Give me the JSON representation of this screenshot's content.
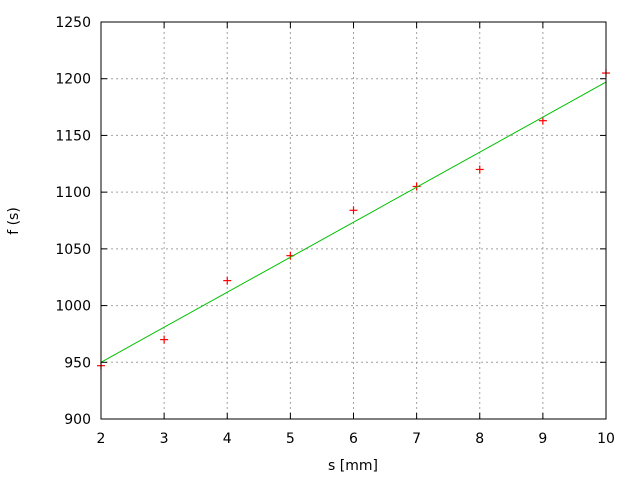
{
  "chart_data": {
    "type": "scatter",
    "title": "",
    "xlabel": "s [mm]",
    "ylabel": "f (s)",
    "xlim": [
      2,
      10
    ],
    "ylim": [
      900,
      1250
    ],
    "xticks": [
      2,
      3,
      4,
      5,
      6,
      7,
      8,
      9,
      10
    ],
    "yticks": [
      900,
      950,
      1000,
      1050,
      1100,
      1150,
      1200,
      1250
    ],
    "grid": true,
    "legend": "none",
    "series": [
      {
        "type": "scatter",
        "marker": "plus",
        "color": "#ff0000",
        "x": [
          2,
          3,
          4,
          5,
          6,
          7,
          8,
          9,
          10
        ],
        "y": [
          947,
          970,
          1022,
          1044,
          1084,
          1105,
          1120,
          1163,
          1205
        ]
      },
      {
        "type": "line",
        "color": "#00c000",
        "x": [
          2,
          10
        ],
        "y": [
          950,
          1197
        ]
      }
    ]
  }
}
